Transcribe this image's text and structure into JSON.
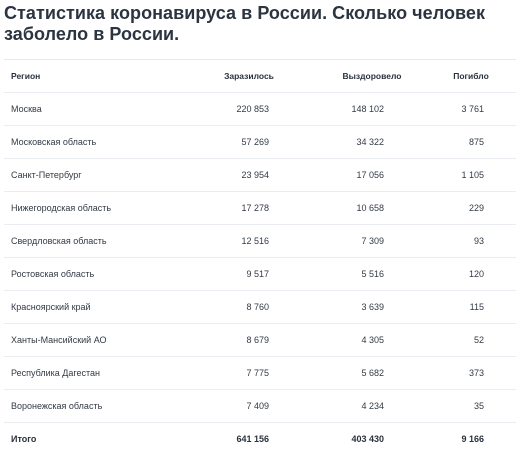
{
  "title": "Статистика коронавируса в России. Сколько человек заболело в России.",
  "table": {
    "headers": {
      "region": "Регион",
      "infected": "Заразилось",
      "recovered": "Выздоровело",
      "deaths": "Погибло"
    },
    "rows": [
      {
        "region": "Москва",
        "infected": "220 853",
        "recovered": "148 102",
        "deaths": "3 761"
      },
      {
        "region": "Московская область",
        "infected": "57 269",
        "recovered": "34 322",
        "deaths": "875"
      },
      {
        "region": "Санкт-Петербург",
        "infected": "23 954",
        "recovered": "17 056",
        "deaths": "1 105"
      },
      {
        "region": "Нижегородская область",
        "infected": "17 278",
        "recovered": "10 658",
        "deaths": "229"
      },
      {
        "region": "Свердловская область",
        "infected": "12 516",
        "recovered": "7 309",
        "deaths": "93"
      },
      {
        "region": "Ростовская область",
        "infected": "9 517",
        "recovered": "5 516",
        "deaths": "120"
      },
      {
        "region": "Красноярский край",
        "infected": "8 760",
        "recovered": "3 639",
        "deaths": "115"
      },
      {
        "region": "Ханты-Мансийский АО",
        "infected": "8 679",
        "recovered": "4 305",
        "deaths": "52"
      },
      {
        "region": "Республика Дагестан",
        "infected": "7 775",
        "recovered": "5 682",
        "deaths": "373"
      },
      {
        "region": "Воронежская область",
        "infected": "7 409",
        "recovered": "4 234",
        "deaths": "35"
      }
    ],
    "total": {
      "region": "Итого",
      "infected": "641 156",
      "recovered": "403 430",
      "deaths": "9 166"
    }
  }
}
